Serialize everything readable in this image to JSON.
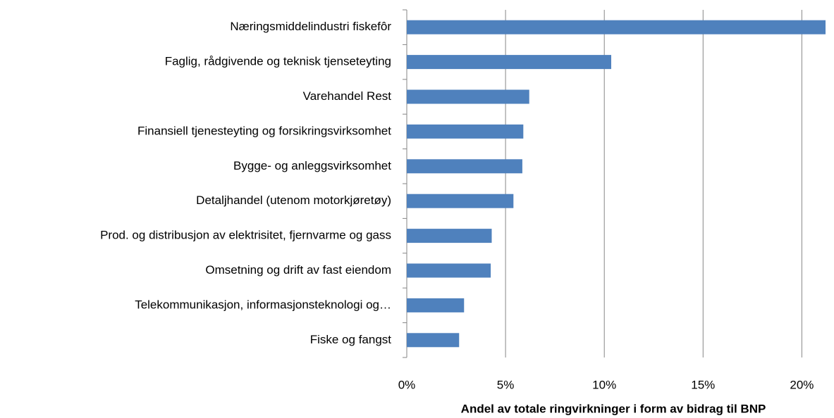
{
  "chart_data": {
    "type": "barh",
    "categories": [
      "Næringsmiddelindustri fiskefôr",
      "Faglig, rådgivende og teknisk tjenseteyting",
      "Varehandel Rest",
      "Finansiell tjenesteyting og forsikringsvirksomhet",
      "Bygge- og anleggsvirksomhet",
      "Detaljhandel (utenom motorkjøretøy)",
      "Prod. og distribusjon av elektrisitet, fjernvarme og gass",
      "Omsetning og drift av fast eiendom",
      "Telekommunikasjon, informasjonsteknologi og…",
      "Fiske og fangst"
    ],
    "values": [
      21.2,
      10.35,
      6.2,
      5.9,
      5.85,
      5.4,
      4.3,
      4.25,
      2.9,
      2.65
    ],
    "color": "#4f81bd",
    "xlabel": "Andel av totale ringvirkninger i form av bidrag til BNP",
    "xlim": [
      0,
      21.2
    ],
    "xticks": [
      {
        "value": 0,
        "label": "0%"
      },
      {
        "value": 5,
        "label": "5%"
      },
      {
        "value": 10,
        "label": "10%"
      },
      {
        "value": 15,
        "label": "15%"
      },
      {
        "value": 20,
        "label": "20%"
      }
    ],
    "grid": true
  }
}
